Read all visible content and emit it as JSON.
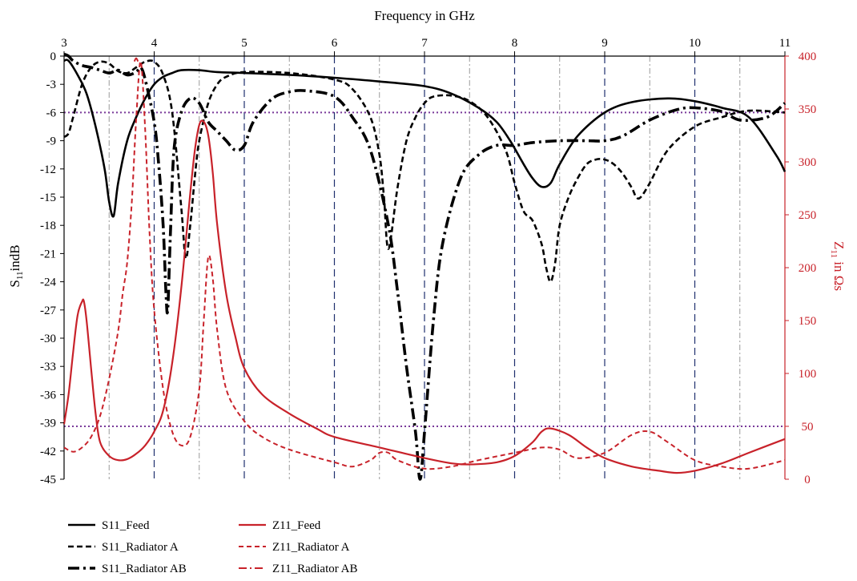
{
  "chart_data": {
    "type": "line",
    "xlabel": "Frequency in GHz",
    "ylabel_left": "S11indB",
    "ylabel_right": "Z11in Ωs",
    "x_ticks": [
      "3",
      "4",
      "5",
      "6",
      "7",
      "8",
      "9",
      "10",
      "11"
    ],
    "y_left_ticks": [
      "0",
      "-3",
      "-6",
      "-9",
      "-12",
      "-15",
      "-18",
      "-21",
      "-24",
      "-27",
      "-30",
      "-33",
      "-36",
      "-39",
      "-42",
      "-45"
    ],
    "y_right_ticks": [
      "400",
      "350",
      "300",
      "250",
      "200",
      "150",
      "100",
      "50",
      "0"
    ],
    "xlim": [
      3,
      11
    ],
    "ylim_left": [
      -45,
      0
    ],
    "ylim_right": [
      0,
      400
    ],
    "major_grid_x": [
      4,
      5,
      6,
      7,
      8,
      9,
      10
    ],
    "minor_grid_x": [
      3.5,
      4.5,
      5.5,
      6.5,
      7.5,
      8.5,
      9.5,
      10.5
    ],
    "reference_lines": [
      {
        "axis": "left",
        "value": -6
      },
      {
        "axis": "right",
        "value": 50
      }
    ],
    "colors": {
      "s11": "#000000",
      "z11": "#c8222a",
      "major_grid": "#1f2f6e",
      "minor_grid": "#9a9a9a",
      "reference": "#7a3a9a"
    },
    "series": [
      {
        "name": "S11_Feed",
        "axis": "left",
        "style": "solid",
        "x": [
          3.0,
          3.05,
          3.15,
          3.25,
          3.35,
          3.45,
          3.5,
          3.55,
          3.6,
          3.7,
          3.8,
          3.9,
          4.0,
          4.1,
          4.2,
          4.3,
          4.5,
          4.7,
          5.0,
          5.5,
          6.0,
          6.5,
          7.0,
          7.3,
          7.6,
          7.8,
          7.95,
          8.1,
          8.2,
          8.3,
          8.4,
          8.5,
          8.7,
          9.0,
          9.3,
          9.7,
          10.0,
          10.3,
          10.6,
          10.9,
          11.0
        ],
        "y": [
          -0.5,
          -0.5,
          -2,
          -4,
          -7.5,
          -12,
          -15.5,
          -17,
          -13.5,
          -9,
          -6.5,
          -4.5,
          -3,
          -2.2,
          -1.8,
          -1.5,
          -1.5,
          -1.7,
          -1.8,
          -2,
          -2.3,
          -2.7,
          -3.2,
          -4,
          -5.5,
          -7,
          -9,
          -11.5,
          -13,
          -13.9,
          -13.5,
          -11.5,
          -8.5,
          -6,
          -4.9,
          -4.5,
          -4.8,
          -5.5,
          -6.5,
          -10.5,
          -12.3
        ]
      },
      {
        "name": "S11_Radiator A",
        "axis": "left",
        "style": "dash",
        "x": [
          3.0,
          3.05,
          3.1,
          3.2,
          3.3,
          3.4,
          3.5,
          3.6,
          3.7,
          3.8,
          3.9,
          4.0,
          4.1,
          4.2,
          4.3,
          4.35,
          4.4,
          4.45,
          4.5,
          4.6,
          4.7,
          4.8,
          5.0,
          5.5,
          6.0,
          6.2,
          6.4,
          6.5,
          6.55,
          6.6,
          6.7,
          6.8,
          6.9,
          7.0,
          7.1,
          7.3,
          7.5,
          7.7,
          7.9,
          8.0,
          8.1,
          8.2,
          8.3,
          8.35,
          8.4,
          8.45,
          8.5,
          8.6,
          8.7,
          8.8,
          8.9,
          9.0,
          9.1,
          9.2,
          9.3,
          9.35,
          9.4,
          9.5,
          9.7,
          10.0,
          10.3,
          10.6,
          11.0
        ],
        "y": [
          -8.6,
          -8.2,
          -6.5,
          -3,
          -1.2,
          -0.6,
          -0.8,
          -1.6,
          -1.8,
          -1.2,
          -0.6,
          -0.6,
          -2,
          -6,
          -16,
          -21.5,
          -18,
          -13,
          -9,
          -5,
          -3,
          -2.2,
          -1.7,
          -1.8,
          -2.5,
          -3.5,
          -6.5,
          -10.5,
          -15,
          -20.5,
          -14,
          -9,
          -6.5,
          -5,
          -4.3,
          -4.2,
          -4.8,
          -6.5,
          -10,
          -13.5,
          -16.5,
          -17.5,
          -20,
          -22.5,
          -24,
          -22,
          -18,
          -15,
          -13,
          -11.5,
          -11,
          -11,
          -11.5,
          -12.5,
          -14,
          -15,
          -15,
          -13.5,
          -10,
          -7.5,
          -6.5,
          -5.8,
          -6
        ]
      },
      {
        "name": "S11_Radiator AB",
        "axis": "left",
        "style": "dashdot",
        "x": [
          3.0,
          3.05,
          3.1,
          3.2,
          3.3,
          3.4,
          3.5,
          3.6,
          3.7,
          3.8,
          3.85,
          3.9,
          4.0,
          4.05,
          4.1,
          4.13,
          4.15,
          4.18,
          4.22,
          4.3,
          4.4,
          4.5,
          4.6,
          4.7,
          4.8,
          4.9,
          5.0,
          5.1,
          5.3,
          5.5,
          5.7,
          6.0,
          6.2,
          6.4,
          6.6,
          6.7,
          6.8,
          6.9,
          6.95,
          7.0,
          7.1,
          7.2,
          7.4,
          7.6,
          7.8,
          8.0,
          8.2,
          8.5,
          8.8,
          9.0,
          9.2,
          9.5,
          9.8,
          10.0,
          10.3,
          10.5,
          10.8,
          11.0
        ],
        "y": [
          0.2,
          0,
          -0.5,
          -1,
          -1.2,
          -1.5,
          -1.8,
          -1.5,
          -2,
          -1.7,
          -1.2,
          -2.5,
          -7,
          -11.5,
          -18,
          -25,
          -27,
          -19,
          -10,
          -6,
          -4.5,
          -5,
          -7,
          -8,
          -9,
          -10,
          -9.5,
          -7,
          -4.6,
          -3.8,
          -3.7,
          -4.3,
          -6.5,
          -10,
          -18,
          -25,
          -33,
          -40,
          -45,
          -40,
          -28,
          -20,
          -13,
          -10.5,
          -9.5,
          -9.5,
          -9.2,
          -9,
          -9,
          -9,
          -8.5,
          -6.8,
          -5.7,
          -5.5,
          -5.9,
          -6.8,
          -6.5,
          -5
        ]
      },
      {
        "name": "Z11_Feed",
        "axis": "right",
        "style": "solid",
        "x": [
          3.0,
          3.05,
          3.1,
          3.15,
          3.2,
          3.22,
          3.25,
          3.3,
          3.35,
          3.4,
          3.5,
          3.6,
          3.7,
          3.8,
          3.9,
          4.0,
          4.1,
          4.2,
          4.3,
          4.4,
          4.45,
          4.5,
          4.55,
          4.6,
          4.65,
          4.7,
          4.8,
          4.9,
          5.0,
          5.2,
          5.5,
          5.8,
          6.0,
          6.5,
          7.0,
          7.3,
          7.5,
          7.8,
          8.0,
          8.2,
          8.3,
          8.4,
          8.6,
          8.8,
          9.0,
          9.3,
          9.6,
          9.8,
          10.0,
          10.3,
          10.6,
          11.0
        ],
        "y": [
          52,
          80,
          120,
          155,
          168,
          168,
          150,
          105,
          62,
          35,
          22,
          18,
          19,
          24,
          32,
          45,
          65,
          110,
          180,
          270,
          310,
          335,
          338,
          325,
          290,
          240,
          175,
          135,
          105,
          80,
          62,
          48,
          40,
          30,
          20,
          15,
          14,
          16,
          22,
          35,
          45,
          48,
          42,
          30,
          20,
          12,
          8,
          6,
          8,
          15,
          25,
          38
        ]
      },
      {
        "name": "Z11_Radiator A",
        "axis": "right",
        "style": "dash",
        "x": [
          3.0,
          3.1,
          3.2,
          3.3,
          3.4,
          3.5,
          3.6,
          3.65,
          3.7,
          3.75,
          3.8,
          3.85,
          3.9,
          3.95,
          4.0,
          4.1,
          4.2,
          4.3,
          4.4,
          4.5,
          4.55,
          4.6,
          4.65,
          4.7,
          4.8,
          5.0,
          5.2,
          5.5,
          6.0,
          6.2,
          6.4,
          6.5,
          6.6,
          6.7,
          7.0,
          7.3,
          7.6,
          8.0,
          8.3,
          8.5,
          8.7,
          9.0,
          9.3,
          9.5,
          9.7,
          10.0,
          10.3,
          10.6,
          11.0
        ],
        "y": [
          30,
          26,
          30,
          40,
          60,
          95,
          140,
          175,
          205,
          260,
          340,
          395,
          330,
          230,
          160,
          85,
          45,
          32,
          40,
          85,
          150,
          210,
          190,
          140,
          85,
          55,
          40,
          28,
          16,
          12,
          18,
          25,
          25,
          18,
          10,
          12,
          18,
          25,
          30,
          28,
          20,
          25,
          42,
          45,
          35,
          18,
          12,
          10,
          18
        ]
      },
      {
        "name": "Z11_Radiator AB",
        "axis": "right",
        "style": "dashdot",
        "x": [
          3.78,
          3.8,
          3.82
        ],
        "y": [
          395,
          398,
          395
        ]
      }
    ],
    "legend": [
      {
        "label": "S11_Feed",
        "series": "S11_Feed"
      },
      {
        "label": "Z11_Feed",
        "series": "Z11_Feed"
      },
      {
        "label": "S11_Radiator A",
        "series": "S11_Radiator A"
      },
      {
        "label": "Z11_Radiator A",
        "series": "Z11_Radiator A"
      },
      {
        "label": "S11_Radiator AB",
        "series": "S11_Radiator AB"
      },
      {
        "label": "Z11_Radiator AB",
        "series": "Z11_Radiator AB"
      }
    ]
  }
}
